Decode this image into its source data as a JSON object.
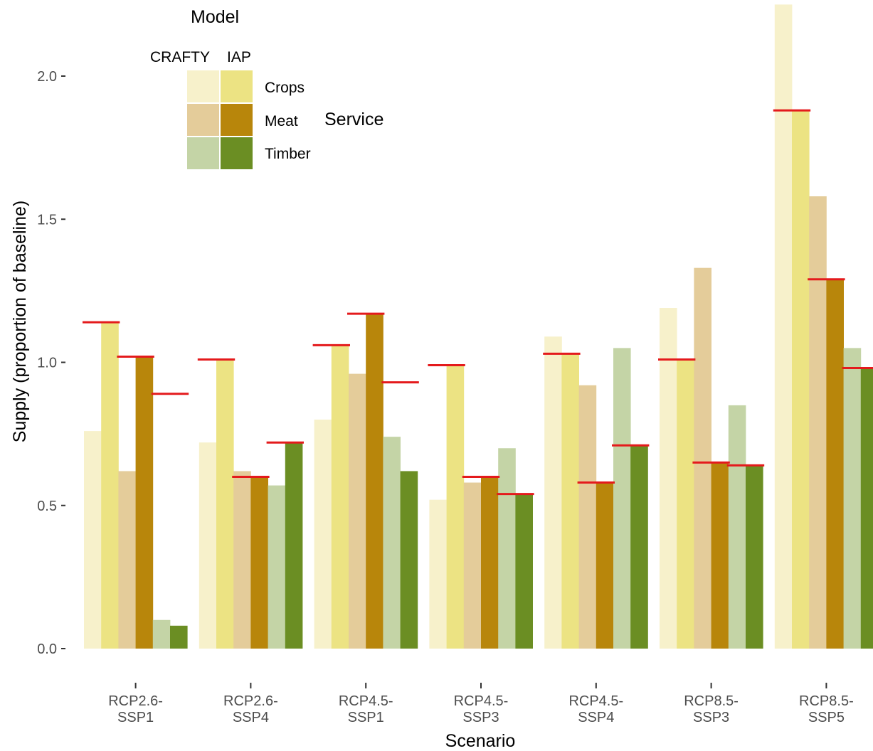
{
  "chart_data": {
    "type": "bar",
    "xlabel": "Scenario",
    "ylabel": "Supply (proportion of baseline)",
    "ylim": [
      0,
      2.0
    ],
    "yticks": [
      "0.0",
      "0.5",
      "1.0",
      "1.5",
      "2.0"
    ],
    "categories": [
      [
        "RCP2.6-",
        "SSP1"
      ],
      [
        "RCP2.6-",
        "SSP4"
      ],
      [
        "RCP4.5-",
        "SSP1"
      ],
      [
        "RCP4.5-",
        "SSP3"
      ],
      [
        "RCP4.5-",
        "SSP4"
      ],
      [
        "RCP8.5-",
        "SSP3"
      ],
      [
        "RCP8.5-",
        "SSP5"
      ]
    ],
    "series": [
      {
        "name": "Crops",
        "model": "CRAFTY",
        "color": "#f7f1cb",
        "values": [
          0.76,
          0.72,
          0.8,
          0.52,
          1.09,
          1.19,
          2.25
        ]
      },
      {
        "name": "Crops",
        "model": "IAP",
        "color": "#ece383",
        "values": [
          1.14,
          1.01,
          1.06,
          0.99,
          1.03,
          1.01,
          1.88
        ]
      },
      {
        "name": "Meat",
        "model": "CRAFTY",
        "color": "#e4cc9a",
        "values": [
          0.62,
          0.62,
          0.96,
          0.58,
          0.92,
          1.33,
          1.58
        ]
      },
      {
        "name": "Meat",
        "model": "IAP",
        "color": "#b8860b",
        "values": [
          1.02,
          0.6,
          1.17,
          0.6,
          0.58,
          0.65,
          1.29
        ]
      },
      {
        "name": "Timber",
        "model": "CRAFTY",
        "color": "#c4d4a6",
        "values": [
          0.1,
          0.57,
          0.74,
          0.7,
          1.05,
          0.85,
          1.05
        ]
      },
      {
        "name": "Timber",
        "model": "IAP",
        "color": "#6b8e23",
        "values": [
          0.08,
          0.72,
          0.62,
          0.54,
          0.71,
          0.64,
          0.98
        ]
      }
    ],
    "reference_lines": {
      "color": "#e41a1c",
      "crops": [
        1.14,
        1.01,
        1.06,
        0.99,
        1.03,
        1.01,
        1.88
      ],
      "meat": [
        1.02,
        0.6,
        1.17,
        0.6,
        0.58,
        0.65,
        1.29
      ],
      "timber": [
        0.89,
        0.72,
        0.93,
        0.54,
        0.71,
        0.64,
        0.98
      ]
    },
    "legend": {
      "title": "Model",
      "columns": [
        "CRAFTY",
        "IAP"
      ],
      "rows": [
        "Crops",
        "Meat",
        "Timber"
      ],
      "row_title": "Service",
      "placement": "top-left"
    },
    "grid": false
  }
}
